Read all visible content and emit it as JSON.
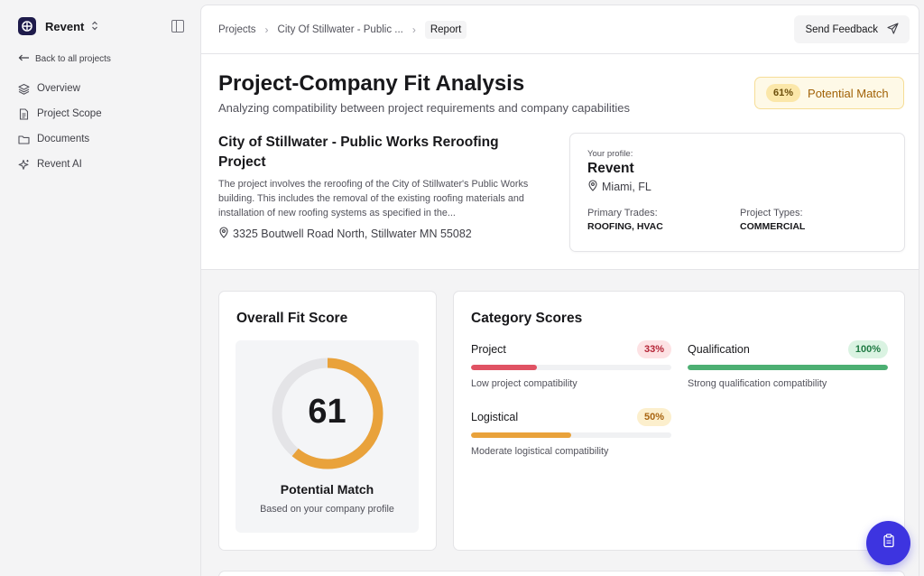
{
  "app": {
    "name": "Revent",
    "back_label": "Back to all projects"
  },
  "sidebar": {
    "items": [
      {
        "label": "Overview",
        "icon": "layers-icon"
      },
      {
        "label": "Project Scope",
        "icon": "document-icon"
      },
      {
        "label": "Documents",
        "icon": "folder-icon"
      },
      {
        "label": "Revent AI",
        "icon": "sparkle-icon"
      }
    ]
  },
  "breadcrumb": {
    "projects": "Projects",
    "project": "City Of Stillwater - Public ...",
    "current": "Report"
  },
  "header": {
    "feedback_label": "Send Feedback",
    "title": "Project-Company Fit Analysis",
    "subtitle": "Analyzing compatibility between project requirements and company capabilities",
    "match_percent": "61%",
    "match_label": "Potential Match"
  },
  "project": {
    "name": "City of Stillwater - Public Works Reroofing Project",
    "description": "The project involves the reroofing of the City of Stillwater's Public Works building. This includes the removal of the existing roofing materials and installation of new roofing systems as specified in the...",
    "address": "3325 Boutwell Road North, Stillwater MN 55082"
  },
  "profile": {
    "label": "Your profile:",
    "name": "Revent",
    "location": "Miami, FL",
    "trades_label": "Primary Trades:",
    "trades_value": "ROOFING, HVAC",
    "types_label": "Project Types:",
    "types_value": "COMMERCIAL"
  },
  "overall": {
    "title": "Overall Fit Score",
    "score": "61",
    "score_fraction": 0.61,
    "label": "Potential Match",
    "sub": "Based on your company profile",
    "color": "#e9a23b"
  },
  "categories": {
    "title": "Category Scores",
    "items": [
      {
        "name": "Project",
        "percent": "33%",
        "fraction": 0.33,
        "description": "Low project compatibility",
        "color": "#e05263",
        "badge_bg": "#fde2e4",
        "badge_fg": "#b42335"
      },
      {
        "name": "Qualification",
        "percent": "100%",
        "fraction": 1.0,
        "description": "Strong qualification compatibility",
        "color": "#4caf72",
        "badge_bg": "#daf3e2",
        "badge_fg": "#1f7a43"
      },
      {
        "name": "Logistical",
        "percent": "50%",
        "fraction": 0.5,
        "description": "Moderate logistical compatibility",
        "color": "#e9a23b",
        "badge_bg": "#fcefcd",
        "badge_fg": "#a86410"
      }
    ]
  }
}
